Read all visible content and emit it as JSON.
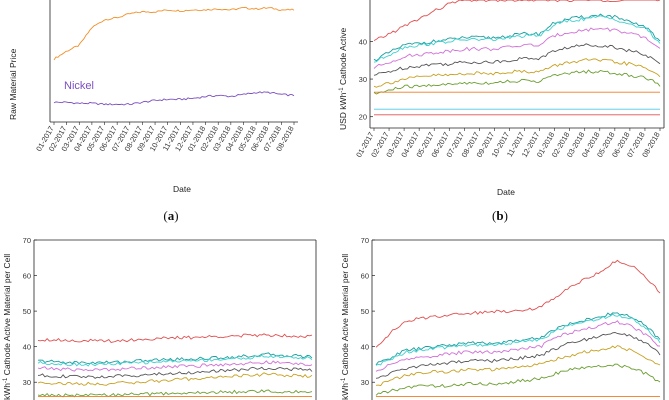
{
  "chart_data": [
    {
      "panel": "a",
      "caption": "(a)",
      "type": "line",
      "xlabel": "Date",
      "ylabel": "Raw Material Price",
      "series_labels": [
        "Nickel"
      ],
      "x_ticks": [
        "01-2017",
        "02-2017",
        "03-2017",
        "04-2017",
        "05-2017",
        "06-2017",
        "07-2017",
        "08-2017",
        "09-2017",
        "10-2017",
        "11-2017",
        "12-2017",
        "01-2018",
        "02-2018",
        "03-2018",
        "04-2018",
        "05-2018",
        "06-2018",
        "07-2018",
        "08-2018"
      ],
      "ylim": [
        0,
        62
      ],
      "series": [
        {
          "name": "",
          "color": "#f0902a",
          "values": [
            32,
            36,
            39,
            48,
            52,
            53,
            55,
            56,
            56,
            57,
            56.5,
            57,
            57,
            57.5,
            57,
            58,
            57.5,
            58,
            57,
            57
          ]
        },
        {
          "name": "Nickel",
          "color": "#7a4fc0",
          "values": [
            10,
            10,
            9.5,
            9.5,
            9,
            9,
            9,
            10,
            11,
            11.5,
            11.5,
            12,
            13,
            13.5,
            13,
            14,
            15,
            15,
            14,
            13.5
          ]
        }
      ]
    },
    {
      "panel": "b",
      "caption": "(b)",
      "type": "line",
      "xlabel": "Date",
      "ylabel": "USD kWh-1 Cathode Active",
      "y_ticks": [
        "20",
        "30",
        "40"
      ],
      "ylim": [
        17,
        51
      ],
      "x_ticks": [
        "01-2017",
        "02-2017",
        "03-2017",
        "04-2017",
        "05-2017",
        "06-2017",
        "07-2017",
        "08-2017",
        "09-2017",
        "10-2017",
        "11-2017",
        "12-2017",
        "01-2018",
        "02-2018",
        "03-2018",
        "04-2018",
        "05-2018",
        "06-2018",
        "07-2018",
        "08-2018"
      ],
      "series": [
        {
          "color": "#e05050",
          "values": [
            40,
            42,
            44,
            46,
            48,
            50,
            51,
            51,
            51,
            51,
            51,
            51,
            51,
            51,
            51,
            51,
            51,
            51,
            51,
            51
          ]
        },
        {
          "color": "#1a9e9e",
          "values": [
            35,
            37,
            39,
            39.5,
            40,
            40.5,
            41,
            41,
            41,
            41.5,
            42,
            42,
            45,
            46,
            46.5,
            47,
            46.5,
            45,
            44,
            40
          ]
        },
        {
          "color": "#3fd0d0",
          "values": [
            34.5,
            36.5,
            38.5,
            39,
            39.5,
            40,
            40.5,
            40.5,
            40.5,
            41,
            41.5,
            41.5,
            44.5,
            45.5,
            46,
            46.5,
            46,
            44.5,
            43.5,
            39.5
          ]
        },
        {
          "color": "#d070d8",
          "values": [
            33,
            34.5,
            36,
            36.5,
            37,
            37.5,
            38,
            38,
            38,
            38.5,
            39,
            39,
            41.5,
            42.5,
            43,
            43.5,
            43,
            42,
            41,
            38
          ]
        },
        {
          "color": "#555555",
          "values": [
            31,
            32,
            33,
            33.5,
            34,
            34,
            34.5,
            34.5,
            34.5,
            35,
            35.5,
            35.5,
            37.5,
            38.5,
            39,
            39,
            38.5,
            37.5,
            36.5,
            34
          ]
        },
        {
          "color": "#c8a020",
          "values": [
            28,
            29,
            30,
            30.5,
            31,
            31,
            31.5,
            31.5,
            31.5,
            32,
            32,
            32,
            33.5,
            34.5,
            35,
            35,
            34.5,
            34,
            33,
            31
          ]
        },
        {
          "color": "#6a9e30",
          "values": [
            26,
            27,
            28,
            28,
            28.5,
            28.5,
            29,
            29,
            29,
            29.5,
            29.5,
            29.5,
            31,
            31.5,
            32,
            32,
            31.5,
            31,
            30.5,
            28.5
          ]
        },
        {
          "color": "#f07a20",
          "values": [
            26.5,
            26.5,
            26.5,
            26.5,
            26.5,
            26.5,
            26.5,
            26.5,
            26.5,
            26.5,
            26.5,
            26.5,
            26.5,
            26.5,
            26.5,
            26.5,
            26.5,
            26.5,
            26.5,
            26.5
          ]
        },
        {
          "color": "#50c8e8",
          "values": [
            22,
            22,
            22,
            22,
            22,
            22,
            22,
            22,
            22,
            22,
            22,
            22,
            22,
            22,
            22,
            22,
            22,
            22,
            22,
            22
          ]
        },
        {
          "color": "#e05050",
          "values": [
            20.5,
            20.5,
            20.5,
            20.5,
            20.5,
            20.5,
            20.5,
            20.5,
            20.5,
            20.5,
            20.5,
            20.5,
            20.5,
            20.5,
            20.5,
            20.5,
            20.5,
            20.5,
            20.5,
            20.5
          ]
        }
      ]
    },
    {
      "panel": "c",
      "type": "line",
      "ylabel": "kWh-1 Cathode Active Material per Cell",
      "y_ticks": [
        "30",
        "40",
        "50",
        "60",
        "70"
      ],
      "ylim": [
        25,
        70
      ],
      "series": [
        {
          "color": "#e05050",
          "values": [
            42,
            42,
            41.8,
            41.7,
            41.6,
            41.6,
            41.8,
            42,
            42.2,
            42.4,
            42.5,
            42.6,
            42.8,
            43,
            43,
            43.2,
            43.3,
            43.2,
            43,
            43
          ]
        },
        {
          "color": "#1a9e9e",
          "values": [
            36,
            35.8,
            35.6,
            35.5,
            35.5,
            35.6,
            35.8,
            36,
            36.2,
            36.4,
            36.5,
            36.6,
            36.8,
            37,
            37.2,
            37.5,
            37.8,
            37.6,
            37.4,
            37.2
          ]
        },
        {
          "color": "#3fd0d0",
          "values": [
            35.5,
            35.3,
            35.1,
            35,
            35,
            35.1,
            35.3,
            35.5,
            35.7,
            35.9,
            36,
            36.1,
            36.3,
            36.5,
            36.7,
            37,
            37.3,
            37.1,
            36.9,
            36.7
          ]
        },
        {
          "color": "#d070d8",
          "values": [
            34,
            33.8,
            33.6,
            33.5,
            33.5,
            33.6,
            33.8,
            34,
            34.2,
            34.4,
            34.5,
            34.6,
            34.8,
            35,
            35.2,
            35.4,
            35.6,
            35.4,
            35.2,
            35
          ]
        },
        {
          "color": "#555555",
          "values": [
            32,
            31.8,
            31.6,
            31.5,
            31.5,
            31.6,
            31.8,
            32,
            32.2,
            32.4,
            32.6,
            32.8,
            33,
            33.3,
            33.5,
            33.8,
            34,
            33.8,
            33.6,
            33.4
          ]
        },
        {
          "color": "#c8a020",
          "values": [
            30,
            29.8,
            29.6,
            29.5,
            29.5,
            29.6,
            29.8,
            30,
            30.3,
            30.5,
            30.8,
            31,
            31.3,
            31.6,
            31.8,
            32,
            32.3,
            32,
            31.8,
            31.6
          ]
        },
        {
          "color": "#6a9e30",
          "values": [
            26.5,
            26.4,
            26.3,
            26.3,
            26.3,
            26.4,
            26.5,
            26.6,
            26.7,
            26.8,
            26.9,
            27,
            27.1,
            27.2,
            27.3,
            27.4,
            27.5,
            27.4,
            27.3,
            27.2
          ]
        },
        {
          "color": "#f07a20",
          "values": [
            26,
            26,
            26,
            26,
            26,
            26,
            26,
            26,
            26,
            26,
            26,
            26,
            26,
            26,
            26,
            26,
            26,
            26,
            26,
            26
          ]
        }
      ]
    },
    {
      "panel": "d",
      "type": "line",
      "ylabel": "kWh-1 Cathode Active Material per Cell",
      "y_ticks": [
        "30",
        "40",
        "50",
        "60",
        "70"
      ],
      "ylim": [
        25,
        70
      ],
      "series": [
        {
          "color": "#e05050",
          "values": [
            40,
            44,
            47,
            48,
            48.5,
            49,
            49.5,
            49.5,
            50,
            50,
            50.5,
            51,
            54,
            57,
            59,
            61,
            64,
            63,
            60,
            55
          ]
        },
        {
          "color": "#1a9e9e",
          "values": [
            35,
            37,
            39,
            39.5,
            40,
            40.5,
            41,
            41,
            41,
            41.5,
            42,
            42.5,
            45,
            46.5,
            47.5,
            48.5,
            49.5,
            48.5,
            46,
            42
          ]
        },
        {
          "color": "#3fd0d0",
          "values": [
            34.5,
            36.5,
            38.5,
            39,
            39.5,
            40,
            40.5,
            40.5,
            40.5,
            41,
            41.5,
            42,
            44.5,
            46,
            47,
            48,
            49,
            48,
            45.5,
            41.5
          ]
        },
        {
          "color": "#d070d8",
          "values": [
            33,
            35,
            36.5,
            37,
            37.5,
            38,
            38.5,
            38.5,
            38.5,
            39,
            39.5,
            40,
            42.5,
            44,
            45,
            46,
            47,
            46,
            43.5,
            40
          ]
        },
        {
          "color": "#555555",
          "values": [
            31,
            32.5,
            34,
            34.5,
            35,
            35.5,
            36,
            36,
            36,
            36.5,
            37,
            37.5,
            39.5,
            41,
            42,
            43,
            44,
            43,
            41,
            38
          ]
        },
        {
          "color": "#c8a020",
          "values": [
            29,
            30.5,
            32,
            32.5,
            33,
            33,
            33.5,
            33.5,
            33.5,
            34,
            34.5,
            35,
            36.5,
            37.5,
            38.5,
            39,
            40,
            39,
            37,
            34.5
          ]
        },
        {
          "color": "#6a9e30",
          "values": [
            26.5,
            27.5,
            28.5,
            29,
            29,
            29,
            29.5,
            29.5,
            29.5,
            30,
            30.5,
            31,
            32.5,
            33.5,
            34,
            34.5,
            35,
            34,
            32.5,
            30
          ]
        },
        {
          "color": "#f07a20",
          "values": [
            26,
            26,
            26,
            26,
            26,
            26,
            26,
            26,
            26,
            26,
            26,
            26,
            26,
            26,
            26,
            26,
            26,
            26,
            26,
            26
          ]
        }
      ]
    }
  ]
}
